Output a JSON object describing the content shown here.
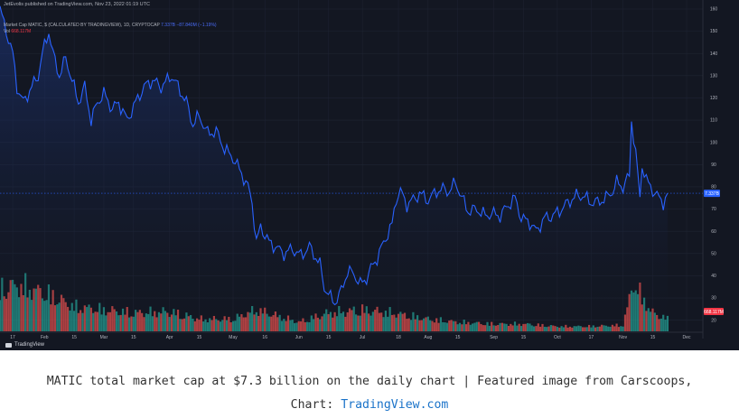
{
  "header": {
    "published": "JetEvolis published on TradingView.com, Nov 23, 2022 01:19 UTC",
    "main_legend": "Market Cap MATIC, $ (CALCULATED BY TRADINGVIEW), 1D, CRYPTOCAP",
    "main_values": "7.337B −87.840M (−1.19%)",
    "vol_label": "Vol",
    "vol_value": "668.117M"
  },
  "footer": {
    "logo_text": "TradingView"
  },
  "caption": {
    "line1": "MATIC total market cap at $7.3 billion on the daily chart | Featured image from Carscoops,",
    "line2_prefix": "Chart: ",
    "link_text": "TradingView.com"
  },
  "colors": {
    "background": "#131722",
    "line": "#2962ff",
    "area_top": "#1e3a8a",
    "volume_up": "#26a69a",
    "volume_down": "#ef5350",
    "price_label": "#2962ff",
    "volume_label": "#f23645",
    "grid": "#1f2433"
  },
  "chart_data": {
    "type": "area",
    "title": "Market Cap MATIC, $ (CALCULATED BY TRADINGVIEW), 1D, CRYPTOCAP",
    "xlabel": "",
    "ylabel": "",
    "ylim": [
      15,
      160
    ],
    "x_ticks": [
      "17",
      "Feb",
      "15",
      "Mar",
      "15",
      "Apr",
      "15",
      "May",
      "16",
      "Jun",
      "15",
      "Jul",
      "18",
      "Aug",
      "15",
      "Sep",
      "15",
      "Oct",
      "17",
      "Nov",
      "15",
      "Dec"
    ],
    "y_ticks": [
      20,
      30,
      40,
      50,
      60,
      70,
      80,
      90,
      100,
      110,
      120,
      130,
      140,
      150,
      160
    ],
    "y_tick_labels": [
      "20",
      "30",
      "40",
      "50",
      "60",
      "70",
      "80",
      "90",
      "100",
      "110",
      "120",
      "130",
      "140",
      "150",
      "160"
    ],
    "last_value_label": "7.337B",
    "volume_label": "668.117M",
    "grid": true,
    "series": [
      {
        "name": "Market Cap MATIC",
        "x_start": "2022-01-11",
        "x_end": "2022-11-22",
        "keypoints": [
          [
            "2022-01-11",
            160
          ],
          [
            "2022-01-14",
            150
          ],
          [
            "2022-01-17",
            140
          ],
          [
            "2022-01-19",
            125
          ],
          [
            "2022-01-22",
            118
          ],
          [
            "2022-01-26",
            125
          ],
          [
            "2022-01-29",
            130
          ],
          [
            "2022-01-31",
            140
          ],
          [
            "2022-02-03",
            150
          ],
          [
            "2022-02-05",
            140
          ],
          [
            "2022-02-08",
            130
          ],
          [
            "2022-02-11",
            138
          ],
          [
            "2022-02-14",
            128
          ],
          [
            "2022-02-17",
            118
          ],
          [
            "2022-02-20",
            125
          ],
          [
            "2022-02-23",
            110
          ],
          [
            "2022-02-26",
            118
          ],
          [
            "2022-03-01",
            122
          ],
          [
            "2022-03-05",
            115
          ],
          [
            "2022-03-08",
            118
          ],
          [
            "2022-03-12",
            110
          ],
          [
            "2022-03-16",
            118
          ],
          [
            "2022-03-20",
            125
          ],
          [
            "2022-03-24",
            128
          ],
          [
            "2022-03-28",
            125
          ],
          [
            "2022-04-02",
            130
          ],
          [
            "2022-04-05",
            125
          ],
          [
            "2022-04-09",
            118
          ],
          [
            "2022-04-12",
            108
          ],
          [
            "2022-04-15",
            112
          ],
          [
            "2022-04-19",
            104
          ],
          [
            "2022-04-23",
            105
          ],
          [
            "2022-04-27",
            97
          ],
          [
            "2022-05-01",
            93
          ],
          [
            "2022-05-05",
            86
          ],
          [
            "2022-05-08",
            80
          ],
          [
            "2022-05-10",
            73
          ],
          [
            "2022-05-12",
            55
          ],
          [
            "2022-05-14",
            62
          ],
          [
            "2022-05-18",
            55
          ],
          [
            "2022-05-21",
            53
          ],
          [
            "2022-05-25",
            50
          ],
          [
            "2022-05-29",
            52
          ],
          [
            "2022-06-02",
            49
          ],
          [
            "2022-06-06",
            53
          ],
          [
            "2022-06-08",
            50
          ],
          [
            "2022-06-11",
            45
          ],
          [
            "2022-06-13",
            35
          ],
          [
            "2022-06-16",
            30
          ],
          [
            "2022-06-18",
            28
          ],
          [
            "2022-06-21",
            33
          ],
          [
            "2022-06-24",
            42
          ],
          [
            "2022-06-27",
            41
          ],
          [
            "2022-06-30",
            36
          ],
          [
            "2022-07-03",
            39
          ],
          [
            "2022-07-06",
            45
          ],
          [
            "2022-07-08",
            48
          ],
          [
            "2022-07-12",
            57
          ],
          [
            "2022-07-15",
            63
          ],
          [
            "2022-07-17",
            75
          ],
          [
            "2022-07-19",
            78
          ],
          [
            "2022-07-22",
            72
          ],
          [
            "2022-07-26",
            75
          ],
          [
            "2022-07-28",
            77
          ],
          [
            "2022-08-01",
            74
          ],
          [
            "2022-08-05",
            78
          ],
          [
            "2022-08-08",
            79
          ],
          [
            "2022-08-11",
            78
          ],
          [
            "2022-08-14",
            82
          ],
          [
            "2022-08-17",
            75
          ],
          [
            "2022-08-20",
            69
          ],
          [
            "2022-08-24",
            70
          ],
          [
            "2022-08-28",
            67
          ],
          [
            "2022-08-31",
            68
          ],
          [
            "2022-09-04",
            67
          ],
          [
            "2022-09-08",
            72
          ],
          [
            "2022-09-11",
            75
          ],
          [
            "2022-09-14",
            66
          ],
          [
            "2022-09-18",
            64
          ],
          [
            "2022-09-21",
            60
          ],
          [
            "2022-09-25",
            66
          ],
          [
            "2022-09-29",
            67
          ],
          [
            "2022-10-03",
            70
          ],
          [
            "2022-10-06",
            73
          ],
          [
            "2022-10-10",
            76
          ],
          [
            "2022-10-13",
            76
          ],
          [
            "2022-10-17",
            73
          ],
          [
            "2022-10-20",
            73
          ],
          [
            "2022-10-24",
            75
          ],
          [
            "2022-10-27",
            78
          ],
          [
            "2022-10-29",
            82
          ],
          [
            "2022-11-01",
            80
          ],
          [
            "2022-11-04",
            85
          ],
          [
            "2022-11-05",
            110
          ],
          [
            "2022-11-07",
            95
          ],
          [
            "2022-11-09",
            75
          ],
          [
            "2022-11-10",
            90
          ],
          [
            "2022-11-12",
            83
          ],
          [
            "2022-11-14",
            80
          ],
          [
            "2022-11-17",
            76
          ],
          [
            "2022-11-20",
            73
          ],
          [
            "2022-11-22",
            76
          ]
        ]
      },
      {
        "name": "Vol",
        "x_start": "2022-01-11",
        "x_end": "2022-11-22",
        "keypoints": [
          [
            "2022-01-11",
            0.7
          ],
          [
            "2022-01-20",
            0.75
          ],
          [
            "2022-02-03",
            0.6
          ],
          [
            "2022-02-15",
            0.4
          ],
          [
            "2022-03-01",
            0.35
          ],
          [
            "2022-03-15",
            0.3
          ],
          [
            "2022-04-01",
            0.32
          ],
          [
            "2022-04-15",
            0.2
          ],
          [
            "2022-05-01",
            0.2
          ],
          [
            "2022-05-12",
            0.35
          ],
          [
            "2022-06-01",
            0.15
          ],
          [
            "2022-06-15",
            0.3
          ],
          [
            "2022-07-01",
            0.35
          ],
          [
            "2022-07-15",
            0.3
          ],
          [
            "2022-08-01",
            0.2
          ],
          [
            "2022-08-15",
            0.15
          ],
          [
            "2022-09-01",
            0.12
          ],
          [
            "2022-09-15",
            0.12
          ],
          [
            "2022-10-01",
            0.08
          ],
          [
            "2022-10-15",
            0.08
          ],
          [
            "2022-11-01",
            0.1
          ],
          [
            "2022-11-06",
            0.8
          ],
          [
            "2022-11-10",
            0.55
          ],
          [
            "2022-11-15",
            0.3
          ],
          [
            "2022-11-22",
            0.2
          ]
        ]
      }
    ]
  }
}
